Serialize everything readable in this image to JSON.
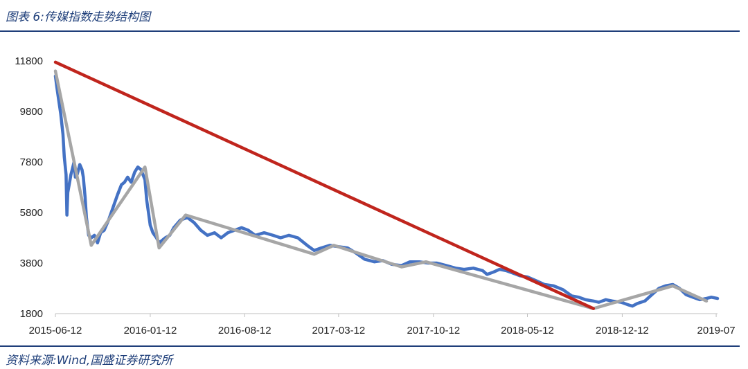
{
  "figure": {
    "title": "图表 6:传媒指数走势结构图",
    "source": "资料来源:Wind,国盛证券研究所"
  },
  "chart_data": {
    "type": "line",
    "title": "",
    "xlabel": "",
    "ylabel": "",
    "grid": false,
    "legend": "none",
    "ylim": [
      1800,
      11800
    ],
    "xlim": [
      "2015-06-12",
      "2019-07-15"
    ],
    "y_ticks": [
      "11800",
      "9800",
      "7800",
      "5800",
      "3800",
      "1800"
    ],
    "y_tick_values": [
      11800,
      9800,
      7800,
      5800,
      3800,
      1800
    ],
    "x_ticks": [
      "2015-06-12",
      "2016-01-12",
      "2016-08-12",
      "2017-03-12",
      "2017-10-12",
      "2018-05-12",
      "2018-12-12",
      "2019-07"
    ],
    "x_tick_values": [
      "2015-06-12",
      "2016-01-12",
      "2016-08-12",
      "2017-03-12",
      "2017-10-12",
      "2018-05-12",
      "2018-12-12",
      "2019-07-12"
    ],
    "series": [
      {
        "role": "index",
        "color": "#4472c4",
        "points": [
          [
            "2015-06-12",
            11200
          ],
          [
            "2015-06-15",
            10800
          ],
          [
            "2015-06-19",
            10300
          ],
          [
            "2015-06-24",
            9700
          ],
          [
            "2015-06-29",
            8900
          ],
          [
            "2015-07-02",
            8000
          ],
          [
            "2015-07-06",
            7300
          ],
          [
            "2015-07-08",
            5700
          ],
          [
            "2015-07-10",
            6600
          ],
          [
            "2015-07-14",
            7000
          ],
          [
            "2015-07-17",
            7300
          ],
          [
            "2015-07-20",
            7500
          ],
          [
            "2015-07-24",
            7800
          ],
          [
            "2015-07-27",
            7200
          ],
          [
            "2015-07-31",
            7300
          ],
          [
            "2015-08-06",
            7700
          ],
          [
            "2015-08-11",
            7500
          ],
          [
            "2015-08-14",
            7200
          ],
          [
            "2015-08-18",
            6400
          ],
          [
            "2015-08-21",
            5600
          ],
          [
            "2015-08-26",
            4900
          ],
          [
            "2015-09-01",
            4800
          ],
          [
            "2015-09-08",
            4900
          ],
          [
            "2015-09-15",
            4600
          ],
          [
            "2015-09-22",
            5000
          ],
          [
            "2015-09-30",
            5100
          ],
          [
            "2015-10-10",
            5500
          ],
          [
            "2015-10-20",
            6000
          ],
          [
            "2015-10-30",
            6500
          ],
          [
            "2015-11-08",
            6900
          ],
          [
            "2015-11-15",
            7000
          ],
          [
            "2015-11-22",
            7200
          ],
          [
            "2015-11-30",
            7000
          ],
          [
            "2015-12-08",
            7400
          ],
          [
            "2015-12-15",
            7600
          ],
          [
            "2015-12-22",
            7500
          ],
          [
            "2015-12-31",
            7100
          ],
          [
            "2016-01-04",
            6300
          ],
          [
            "2016-01-08",
            5800
          ],
          [
            "2016-01-12",
            5300
          ],
          [
            "2016-01-18",
            5000
          ],
          [
            "2016-01-26",
            4800
          ],
          [
            "2016-02-01",
            4600
          ],
          [
            "2016-02-15",
            4800
          ],
          [
            "2016-02-25",
            4900
          ],
          [
            "2016-03-05",
            5200
          ],
          [
            "2016-03-20",
            5500
          ],
          [
            "2016-04-05",
            5600
          ],
          [
            "2016-04-20",
            5400
          ],
          [
            "2016-05-05",
            5100
          ],
          [
            "2016-05-20",
            4900
          ],
          [
            "2016-06-05",
            5000
          ],
          [
            "2016-06-20",
            4800
          ],
          [
            "2016-07-05",
            5000
          ],
          [
            "2016-07-20",
            5100
          ],
          [
            "2016-08-05",
            5200
          ],
          [
            "2016-08-20",
            5100
          ],
          [
            "2016-09-05",
            4900
          ],
          [
            "2016-09-25",
            5000
          ],
          [
            "2016-10-15",
            4900
          ],
          [
            "2016-11-01",
            4800
          ],
          [
            "2016-11-20",
            4900
          ],
          [
            "2016-12-10",
            4800
          ],
          [
            "2016-12-31",
            4500
          ],
          [
            "2017-01-16",
            4300
          ],
          [
            "2017-02-01",
            4400
          ],
          [
            "2017-02-20",
            4500
          ],
          [
            "2017-03-12",
            4450
          ],
          [
            "2017-04-01",
            4400
          ],
          [
            "2017-04-20",
            4200
          ],
          [
            "2017-05-10",
            3950
          ],
          [
            "2017-06-01",
            3850
          ],
          [
            "2017-06-20",
            3900
          ],
          [
            "2017-07-10",
            3750
          ],
          [
            "2017-08-01",
            3700
          ],
          [
            "2017-08-20",
            3850
          ],
          [
            "2017-09-10",
            3850
          ],
          [
            "2017-10-01",
            3800
          ],
          [
            "2017-10-20",
            3800
          ],
          [
            "2017-11-10",
            3700
          ],
          [
            "2017-12-01",
            3600
          ],
          [
            "2017-12-20",
            3550
          ],
          [
            "2018-01-10",
            3600
          ],
          [
            "2018-01-31",
            3500
          ],
          [
            "2018-02-10",
            3350
          ],
          [
            "2018-02-25",
            3450
          ],
          [
            "2018-03-10",
            3550
          ],
          [
            "2018-03-25",
            3500
          ],
          [
            "2018-04-10",
            3400
          ],
          [
            "2018-04-25",
            3300
          ],
          [
            "2018-05-12",
            3250
          ],
          [
            "2018-06-01",
            3100
          ],
          [
            "2018-06-20",
            2950
          ],
          [
            "2018-07-10",
            2900
          ],
          [
            "2018-07-31",
            2750
          ],
          [
            "2018-08-20",
            2500
          ],
          [
            "2018-09-05",
            2450
          ],
          [
            "2018-09-20",
            2350
          ],
          [
            "2018-10-08",
            2300
          ],
          [
            "2018-10-20",
            2250
          ],
          [
            "2018-11-05",
            2350
          ],
          [
            "2018-11-20",
            2300
          ],
          [
            "2018-12-10",
            2250
          ],
          [
            "2018-12-25",
            2150
          ],
          [
            "2019-01-04",
            2100
          ],
          [
            "2019-01-15",
            2200
          ],
          [
            "2019-02-01",
            2300
          ],
          [
            "2019-02-20",
            2600
          ],
          [
            "2019-03-05",
            2800
          ],
          [
            "2019-03-20",
            2900
          ],
          [
            "2019-04-05",
            2950
          ],
          [
            "2019-04-20",
            2800
          ],
          [
            "2019-05-05",
            2550
          ],
          [
            "2019-05-20",
            2450
          ],
          [
            "2019-06-05",
            2350
          ],
          [
            "2019-06-20",
            2400
          ],
          [
            "2019-07-01",
            2450
          ],
          [
            "2019-07-15",
            2400
          ]
        ]
      },
      {
        "role": "structure-trend",
        "color": "#a6a6a6",
        "points": [
          [
            "2015-06-12",
            11400
          ],
          [
            "2015-09-01",
            4500
          ],
          [
            "2015-12-31",
            7600
          ],
          [
            "2016-02-01",
            4400
          ],
          [
            "2016-04-01",
            5700
          ],
          [
            "2017-01-16",
            4150
          ],
          [
            "2017-03-01",
            4500
          ],
          [
            "2017-08-01",
            3650
          ],
          [
            "2017-09-25",
            3850
          ],
          [
            "2018-10-08",
            2000
          ],
          [
            "2019-04-05",
            2900
          ],
          [
            "2019-06-20",
            2300
          ]
        ]
      },
      {
        "role": "long-term-trend",
        "color": "#c0251d",
        "points": [
          [
            "2015-06-12",
            11750
          ],
          [
            "2018-10-08",
            2000
          ]
        ]
      }
    ]
  }
}
